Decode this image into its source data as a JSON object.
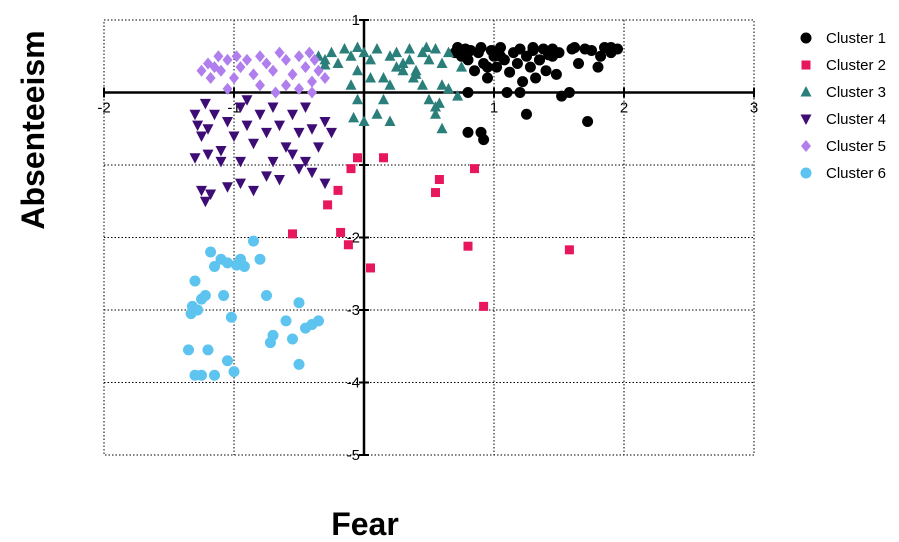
{
  "chart_data": {
    "type": "scatter",
    "title": "",
    "xlabel": "Fear",
    "ylabel": "Absenteeism",
    "xlim": [
      -2,
      3
    ],
    "ylim": [
      -5,
      1
    ],
    "xticks": [
      -2,
      -1,
      1,
      2,
      3
    ],
    "yticks": [
      1,
      -2,
      -3,
      -4,
      -5
    ],
    "grid": true,
    "grid_style": "dotted",
    "legend_position": "right",
    "series": [
      {
        "name": "Cluster 1",
        "marker": "circle",
        "color": "#000000",
        "points": [
          [
            0.7,
            0.55
          ],
          [
            0.72,
            0.62
          ],
          [
            0.75,
            0.5
          ],
          [
            0.78,
            0.6
          ],
          [
            0.8,
            0.45
          ],
          [
            0.82,
            0.58
          ],
          [
            0.85,
            0.3
          ],
          [
            0.88,
            0.55
          ],
          [
            0.9,
            0.62
          ],
          [
            0.92,
            0.4
          ],
          [
            0.95,
            0.2
          ],
          [
            0.98,
            0.58
          ],
          [
            1.0,
            0.5
          ],
          [
            1.02,
            0.35
          ],
          [
            1.05,
            0.62
          ],
          [
            1.08,
            0.45
          ],
          [
            1.1,
            0.0
          ],
          [
            1.12,
            0.28
          ],
          [
            1.15,
            0.55
          ],
          [
            1.18,
            0.4
          ],
          [
            1.2,
            0.6
          ],
          [
            1.22,
            0.15
          ],
          [
            1.25,
            0.5
          ],
          [
            1.28,
            0.35
          ],
          [
            1.3,
            0.58
          ],
          [
            1.32,
            0.2
          ],
          [
            1.35,
            0.45
          ],
          [
            1.38,
            0.6
          ],
          [
            1.4,
            0.3
          ],
          [
            1.42,
            0.52
          ],
          [
            1.45,
            0.6
          ],
          [
            1.48,
            0.25
          ],
          [
            1.5,
            0.55
          ],
          [
            1.58,
            0.0
          ],
          [
            1.62,
            0.62
          ],
          [
            1.65,
            0.4
          ],
          [
            1.7,
            0.6
          ],
          [
            1.75,
            0.58
          ],
          [
            1.8,
            0.35
          ],
          [
            1.85,
            0.62
          ],
          [
            1.9,
            0.55
          ],
          [
            1.95,
            0.6
          ],
          [
            1.9,
            0.62
          ],
          [
            1.6,
            0.6
          ],
          [
            1.3,
            0.62
          ],
          [
            1.2,
            0.0
          ],
          [
            0.8,
            -0.55
          ],
          [
            0.8,
            0.0
          ],
          [
            0.9,
            -0.55
          ],
          [
            0.92,
            -0.65
          ],
          [
            1.25,
            -0.3
          ],
          [
            1.72,
            -0.4
          ],
          [
            1.82,
            0.5
          ],
          [
            1.52,
            -0.05
          ],
          [
            1.45,
            0.5
          ],
          [
            1.35,
            0.45
          ],
          [
            0.95,
            0.35
          ],
          [
            1.05,
            0.5
          ]
        ]
      },
      {
        "name": "Cluster 2",
        "marker": "square",
        "color": "#e8175d",
        "points": [
          [
            -0.05,
            -0.9
          ],
          [
            0.15,
            -0.9
          ],
          [
            -0.1,
            -1.05
          ],
          [
            0.58,
            -1.2
          ],
          [
            0.85,
            -1.05
          ],
          [
            0.55,
            -1.38
          ],
          [
            -0.2,
            -1.35
          ],
          [
            -0.28,
            -1.55
          ],
          [
            -0.55,
            -1.95
          ],
          [
            -0.18,
            -1.93
          ],
          [
            -0.12,
            -2.1
          ],
          [
            0.8,
            -2.12
          ],
          [
            1.58,
            -2.17
          ],
          [
            0.05,
            -2.42
          ],
          [
            0.92,
            -2.95
          ]
        ]
      },
      {
        "name": "Cluster 3",
        "marker": "triangle-up",
        "color": "#2a7f7a",
        "points": [
          [
            -0.35,
            0.5
          ],
          [
            -0.3,
            0.45
          ],
          [
            -0.25,
            0.55
          ],
          [
            -0.2,
            0.4
          ],
          [
            -0.15,
            0.6
          ],
          [
            -0.1,
            0.5
          ],
          [
            -0.05,
            0.3
          ],
          [
            0.0,
            0.55
          ],
          [
            0.05,
            0.45
          ],
          [
            0.1,
            0.6
          ],
          [
            0.15,
            0.2
          ],
          [
            0.2,
            0.5
          ],
          [
            0.25,
            0.55
          ],
          [
            0.3,
            0.4
          ],
          [
            0.35,
            0.6
          ],
          [
            0.4,
            0.3
          ],
          [
            0.45,
            0.55
          ],
          [
            0.5,
            0.45
          ],
          [
            0.55,
            0.6
          ],
          [
            0.6,
            0.4
          ],
          [
            0.65,
            0.55
          ],
          [
            -0.1,
            0.1
          ],
          [
            -0.05,
            -0.1
          ],
          [
            0.05,
            0.2
          ],
          [
            0.1,
            -0.3
          ],
          [
            0.15,
            -0.1
          ],
          [
            0.2,
            0.1
          ],
          [
            0.3,
            0.3
          ],
          [
            0.38,
            0.2
          ],
          [
            0.45,
            0.1
          ],
          [
            0.5,
            -0.1
          ],
          [
            0.55,
            -0.3
          ],
          [
            0.58,
            -0.15
          ],
          [
            0.6,
            0.1
          ],
          [
            0.65,
            0.05
          ],
          [
            0.72,
            -0.05
          ],
          [
            0.75,
            0.35
          ],
          [
            -0.08,
            -0.35
          ],
          [
            0.0,
            -0.4
          ],
          [
            0.2,
            -0.4
          ],
          [
            0.6,
            -0.5
          ],
          [
            0.55,
            -0.2
          ],
          [
            0.4,
            0.25
          ],
          [
            -0.3,
            0.38
          ],
          [
            -0.05,
            0.62
          ],
          [
            0.25,
            0.35
          ],
          [
            0.35,
            0.45
          ],
          [
            0.48,
            0.62
          ]
        ]
      },
      {
        "name": "Cluster 4",
        "marker": "triangle-down",
        "color": "#3d0d75",
        "points": [
          [
            -1.3,
            -0.3
          ],
          [
            -1.28,
            -0.45
          ],
          [
            -1.25,
            -0.6
          ],
          [
            -1.22,
            -0.15
          ],
          [
            -1.2,
            -0.5
          ],
          [
            -1.15,
            -0.3
          ],
          [
            -1.1,
            -0.8
          ],
          [
            -1.05,
            -0.4
          ],
          [
            -1.0,
            -0.6
          ],
          [
            -0.95,
            -0.2
          ],
          [
            -0.9,
            -0.45
          ],
          [
            -0.85,
            -0.7
          ],
          [
            -0.8,
            -0.3
          ],
          [
            -0.75,
            -0.55
          ],
          [
            -0.7,
            -0.2
          ],
          [
            -0.65,
            -0.45
          ],
          [
            -0.6,
            -0.75
          ],
          [
            -0.55,
            -0.3
          ],
          [
            -0.5,
            -0.55
          ],
          [
            -0.45,
            -0.2
          ],
          [
            -0.4,
            -0.5
          ],
          [
            -0.35,
            -0.75
          ],
          [
            -0.3,
            -0.4
          ],
          [
            -0.55,
            -0.85
          ],
          [
            -0.45,
            -0.95
          ],
          [
            -0.7,
            -0.95
          ],
          [
            -0.95,
            -0.95
          ],
          [
            -1.2,
            -0.85
          ],
          [
            -1.3,
            -0.9
          ],
          [
            -1.25,
            -1.35
          ],
          [
            -1.18,
            -1.4
          ],
          [
            -1.22,
            -1.5
          ],
          [
            -1.05,
            -1.3
          ],
          [
            -0.95,
            -1.25
          ],
          [
            -0.85,
            -1.35
          ],
          [
            -0.75,
            -1.15
          ],
          [
            -0.65,
            -1.2
          ],
          [
            -0.5,
            -1.05
          ],
          [
            -0.4,
            -1.1
          ],
          [
            -0.3,
            -1.25
          ],
          [
            -1.1,
            -0.95
          ],
          [
            -0.25,
            -0.55
          ],
          [
            -0.9,
            -0.1
          ]
        ]
      },
      {
        "name": "Cluster 5",
        "marker": "diamond",
        "color": "#b07fed",
        "points": [
          [
            -1.2,
            0.4
          ],
          [
            -1.18,
            0.2
          ],
          [
            -1.15,
            0.35
          ],
          [
            -1.12,
            0.5
          ],
          [
            -1.1,
            0.3
          ],
          [
            -1.05,
            0.45
          ],
          [
            -1.0,
            0.2
          ],
          [
            -0.98,
            0.5
          ],
          [
            -0.95,
            0.35
          ],
          [
            -0.9,
            0.45
          ],
          [
            -0.85,
            0.25
          ],
          [
            -0.8,
            0.5
          ],
          [
            -0.75,
            0.4
          ],
          [
            -0.7,
            0.3
          ],
          [
            -0.65,
            0.55
          ],
          [
            -0.6,
            0.45
          ],
          [
            -0.55,
            0.25
          ],
          [
            -0.5,
            0.5
          ],
          [
            -0.45,
            0.35
          ],
          [
            -0.42,
            0.55
          ],
          [
            -0.4,
            0.15
          ],
          [
            -0.38,
            0.45
          ],
          [
            -0.35,
            0.3
          ],
          [
            -0.5,
            0.05
          ],
          [
            -0.6,
            0.1
          ],
          [
            -0.8,
            0.1
          ],
          [
            -1.05,
            0.05
          ],
          [
            -0.68,
            0.0
          ],
          [
            -0.4,
            0.0
          ],
          [
            -0.3,
            0.2
          ],
          [
            -1.25,
            0.3
          ]
        ]
      },
      {
        "name": "Cluster 6",
        "marker": "circle",
        "color": "#5dc3ef",
        "points": [
          [
            -1.3,
            -2.6
          ],
          [
            -1.32,
            -2.95
          ],
          [
            -1.28,
            -3.0
          ],
          [
            -1.25,
            -2.85
          ],
          [
            -1.22,
            -2.8
          ],
          [
            -1.18,
            -2.2
          ],
          [
            -1.15,
            -2.4
          ],
          [
            -1.1,
            -2.3
          ],
          [
            -1.05,
            -2.35
          ],
          [
            -1.08,
            -2.8
          ],
          [
            -0.98,
            -2.38
          ],
          [
            -0.95,
            -2.3
          ],
          [
            -0.92,
            -2.4
          ],
          [
            -1.02,
            -3.1
          ],
          [
            -1.05,
            -3.7
          ],
          [
            -1.2,
            -3.55
          ],
          [
            -1.3,
            -3.9
          ],
          [
            -1.25,
            -3.9
          ],
          [
            -1.15,
            -3.9
          ],
          [
            -1.0,
            -3.85
          ],
          [
            -0.85,
            -2.05
          ],
          [
            -0.8,
            -2.3
          ],
          [
            -0.75,
            -2.8
          ],
          [
            -0.7,
            -3.35
          ],
          [
            -0.72,
            -3.45
          ],
          [
            -0.6,
            -3.15
          ],
          [
            -0.55,
            -3.4
          ],
          [
            -0.5,
            -2.9
          ],
          [
            -0.45,
            -3.25
          ],
          [
            -0.4,
            -3.2
          ],
          [
            -0.35,
            -3.15
          ],
          [
            -0.5,
            -3.75
          ],
          [
            -1.35,
            -3.55
          ],
          [
            -1.33,
            -3.05
          ]
        ]
      }
    ]
  }
}
